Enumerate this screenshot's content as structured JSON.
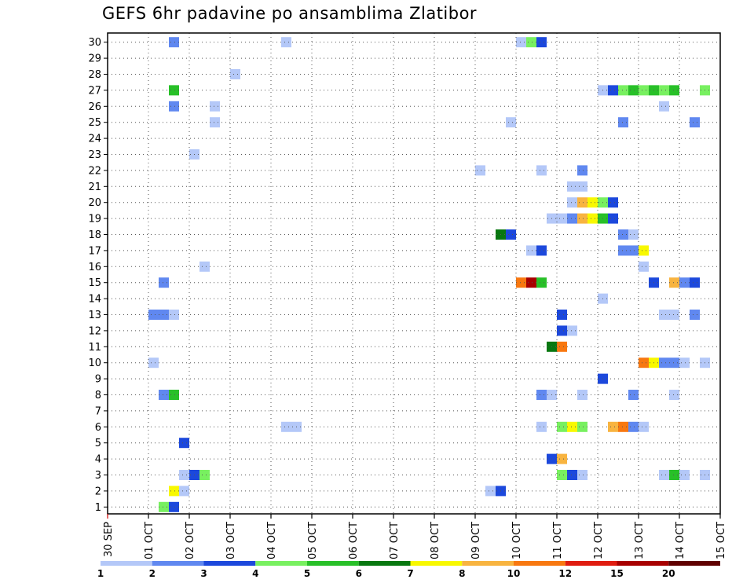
{
  "chart_data": {
    "type": "heatmap",
    "title": "GEFS 6hr padavine po ansamblima Zlatibor",
    "xlabel": "",
    "ylabel": "",
    "x_tick_labels": [
      "30 SEP",
      "01 OCT",
      "02 OCT",
      "03 OCT",
      "04 OCT",
      "05 OCT",
      "06 OCT",
      "07 OCT",
      "08 OCT",
      "09 OCT",
      "10 OCT",
      "11 OCT",
      "12 OCT",
      "13 OCT",
      "14 OCT",
      "15 OCT"
    ],
    "x_range_days": [
      0,
      15
    ],
    "y_tick_labels": [
      "1",
      "2",
      "3",
      "4",
      "5",
      "6",
      "7",
      "8",
      "9",
      "10",
      "11",
      "12",
      "13",
      "14",
      "15",
      "16",
      "17",
      "18",
      "19",
      "20",
      "21",
      "22",
      "23",
      "24",
      "25",
      "26",
      "27",
      "28",
      "29",
      "30"
    ],
    "y_range": [
      0,
      30
    ],
    "grid": true,
    "colorbar": {
      "labels": [
        "1",
        "2",
        "3",
        "4",
        "5",
        "6",
        "7",
        "8",
        "10",
        "12",
        "15",
        "20"
      ],
      "colors": [
        "#b4c8f8",
        "#6088f0",
        "#1c48dc",
        "#78f060",
        "#28c028",
        "#087810",
        "#f8f800",
        "#f8b440",
        "#f87810",
        "#e01c10",
        "#a80000",
        "#600000"
      ]
    },
    "cells": [
      {
        "member": 30,
        "day": 1.5,
        "color": "#6088f0"
      },
      {
        "member": 30,
        "day": 4.25,
        "color": "#b4c8f8"
      },
      {
        "member": 30,
        "day": 10.0,
        "color": "#b4c8f8"
      },
      {
        "member": 30,
        "day": 10.25,
        "color": "#78f060"
      },
      {
        "member": 30,
        "day": 10.5,
        "color": "#1c48dc"
      },
      {
        "member": 28,
        "day": 3.0,
        "color": "#b4c8f8"
      },
      {
        "member": 27,
        "day": 1.5,
        "color": "#28c028"
      },
      {
        "member": 27,
        "day": 12.0,
        "color": "#b4c8f8"
      },
      {
        "member": 27,
        "day": 12.25,
        "color": "#1c48dc"
      },
      {
        "member": 27,
        "day": 12.5,
        "color": "#78f060"
      },
      {
        "member": 27,
        "day": 12.75,
        "color": "#28c028"
      },
      {
        "member": 27,
        "day": 13.0,
        "color": "#78f060"
      },
      {
        "member": 27,
        "day": 13.25,
        "color": "#28c028"
      },
      {
        "member": 27,
        "day": 13.5,
        "color": "#78f060"
      },
      {
        "member": 27,
        "day": 13.75,
        "color": "#28c028"
      },
      {
        "member": 27,
        "day": 14.5,
        "color": "#78f060"
      },
      {
        "member": 26,
        "day": 1.5,
        "color": "#6088f0"
      },
      {
        "member": 26,
        "day": 2.5,
        "color": "#b4c8f8"
      },
      {
        "member": 26,
        "day": 13.5,
        "color": "#b4c8f8"
      },
      {
        "member": 25,
        "day": 2.5,
        "color": "#b4c8f8"
      },
      {
        "member": 25,
        "day": 9.75,
        "color": "#b4c8f8"
      },
      {
        "member": 25,
        "day": 12.5,
        "color": "#6088f0"
      },
      {
        "member": 25,
        "day": 14.25,
        "color": "#6088f0"
      },
      {
        "member": 23,
        "day": 2.0,
        "color": "#b4c8f8"
      },
      {
        "member": 22,
        "day": 9.0,
        "color": "#b4c8f8"
      },
      {
        "member": 22,
        "day": 10.5,
        "color": "#b4c8f8"
      },
      {
        "member": 22,
        "day": 11.5,
        "color": "#6088f0"
      },
      {
        "member": 21,
        "day": 11.25,
        "color": "#b4c8f8"
      },
      {
        "member": 21,
        "day": 11.5,
        "color": "#b4c8f8"
      },
      {
        "member": 20,
        "day": 11.25,
        "color": "#b4c8f8"
      },
      {
        "member": 20,
        "day": 11.5,
        "color": "#f8b440"
      },
      {
        "member": 20,
        "day": 11.75,
        "color": "#f8f800"
      },
      {
        "member": 20,
        "day": 12.0,
        "color": "#78f060"
      },
      {
        "member": 20,
        "day": 12.25,
        "color": "#1c48dc"
      },
      {
        "member": 19,
        "day": 10.75,
        "color": "#b4c8f8"
      },
      {
        "member": 19,
        "day": 11.0,
        "color": "#b4c8f8"
      },
      {
        "member": 19,
        "day": 11.25,
        "color": "#6088f0"
      },
      {
        "member": 19,
        "day": 11.5,
        "color": "#f8b440"
      },
      {
        "member": 19,
        "day": 11.75,
        "color": "#f8f800"
      },
      {
        "member": 19,
        "day": 12.0,
        "color": "#28c028"
      },
      {
        "member": 19,
        "day": 12.25,
        "color": "#1c48dc"
      },
      {
        "member": 18,
        "day": 9.5,
        "color": "#087810"
      },
      {
        "member": 18,
        "day": 9.75,
        "color": "#1c48dc"
      },
      {
        "member": 18,
        "day": 12.5,
        "color": "#6088f0"
      },
      {
        "member": 18,
        "day": 12.75,
        "color": "#b4c8f8"
      },
      {
        "member": 17,
        "day": 10.25,
        "color": "#b4c8f8"
      },
      {
        "member": 17,
        "day": 10.5,
        "color": "#1c48dc"
      },
      {
        "member": 17,
        "day": 12.5,
        "color": "#6088f0"
      },
      {
        "member": 17,
        "day": 12.75,
        "color": "#6088f0"
      },
      {
        "member": 17,
        "day": 13.0,
        "color": "#f8f800"
      },
      {
        "member": 16,
        "day": 2.25,
        "color": "#b4c8f8"
      },
      {
        "member": 16,
        "day": 13.0,
        "color": "#b4c8f8"
      },
      {
        "member": 15,
        "day": 1.25,
        "color": "#6088f0"
      },
      {
        "member": 15,
        "day": 10.0,
        "color": "#f87810"
      },
      {
        "member": 15,
        "day": 10.25,
        "color": "#a80000"
      },
      {
        "member": 15,
        "day": 10.5,
        "color": "#28c028"
      },
      {
        "member": 15,
        "day": 13.25,
        "color": "#1c48dc"
      },
      {
        "member": 15,
        "day": 13.75,
        "color": "#f8b440"
      },
      {
        "member": 15,
        "day": 14.0,
        "color": "#6088f0"
      },
      {
        "member": 15,
        "day": 14.25,
        "color": "#1c48dc"
      },
      {
        "member": 14,
        "day": 12.0,
        "color": "#b4c8f8"
      },
      {
        "member": 13,
        "day": 1.0,
        "color": "#6088f0"
      },
      {
        "member": 13,
        "day": 1.25,
        "color": "#6088f0"
      },
      {
        "member": 13,
        "day": 1.5,
        "color": "#b4c8f8"
      },
      {
        "member": 13,
        "day": 11.0,
        "color": "#1c48dc"
      },
      {
        "member": 13,
        "day": 13.5,
        "color": "#b4c8f8"
      },
      {
        "member": 13,
        "day": 13.75,
        "color": "#b4c8f8"
      },
      {
        "member": 13,
        "day": 14.25,
        "color": "#6088f0"
      },
      {
        "member": 12,
        "day": 11.0,
        "color": "#1c48dc"
      },
      {
        "member": 12,
        "day": 11.25,
        "color": "#b4c8f8"
      },
      {
        "member": 11,
        "day": 10.75,
        "color": "#087810"
      },
      {
        "member": 11,
        "day": 11.0,
        "color": "#f87810"
      },
      {
        "member": 10,
        "day": 1.0,
        "color": "#b4c8f8"
      },
      {
        "member": 10,
        "day": 13.0,
        "color": "#f87810"
      },
      {
        "member": 10,
        "day": 13.25,
        "color": "#f8f800"
      },
      {
        "member": 10,
        "day": 13.5,
        "color": "#6088f0"
      },
      {
        "member": 10,
        "day": 13.75,
        "color": "#6088f0"
      },
      {
        "member": 10,
        "day": 14.0,
        "color": "#b4c8f8"
      },
      {
        "member": 10,
        "day": 14.5,
        "color": "#b4c8f8"
      },
      {
        "member": 9,
        "day": 12.0,
        "color": "#1c48dc"
      },
      {
        "member": 8,
        "day": 1.25,
        "color": "#6088f0"
      },
      {
        "member": 8,
        "day": 1.5,
        "color": "#28c028"
      },
      {
        "member": 8,
        "day": 10.5,
        "color": "#6088f0"
      },
      {
        "member": 8,
        "day": 10.75,
        "color": "#b4c8f8"
      },
      {
        "member": 8,
        "day": 11.5,
        "color": "#b4c8f8"
      },
      {
        "member": 8,
        "day": 12.75,
        "color": "#6088f0"
      },
      {
        "member": 8,
        "day": 13.75,
        "color": "#b4c8f8"
      },
      {
        "member": 6,
        "day": 4.25,
        "color": "#b4c8f8"
      },
      {
        "member": 6,
        "day": 4.5,
        "color": "#b4c8f8"
      },
      {
        "member": 6,
        "day": 10.5,
        "color": "#b4c8f8"
      },
      {
        "member": 6,
        "day": 11.0,
        "color": "#78f060"
      },
      {
        "member": 6,
        "day": 11.25,
        "color": "#f8f800"
      },
      {
        "member": 6,
        "day": 11.5,
        "color": "#78f060"
      },
      {
        "member": 6,
        "day": 12.25,
        "color": "#f8b440"
      },
      {
        "member": 6,
        "day": 12.5,
        "color": "#f87810"
      },
      {
        "member": 6,
        "day": 12.75,
        "color": "#6088f0"
      },
      {
        "member": 6,
        "day": 13.0,
        "color": "#b4c8f8"
      },
      {
        "member": 5,
        "day": 1.75,
        "color": "#1c48dc"
      },
      {
        "member": 4,
        "day": 10.75,
        "color": "#1c48dc"
      },
      {
        "member": 4,
        "day": 11.0,
        "color": "#f8b440"
      },
      {
        "member": 3,
        "day": 1.75,
        "color": "#b4c8f8"
      },
      {
        "member": 3,
        "day": 2.0,
        "color": "#1c48dc"
      },
      {
        "member": 3,
        "day": 2.25,
        "color": "#78f060"
      },
      {
        "member": 3,
        "day": 11.0,
        "color": "#78f060"
      },
      {
        "member": 3,
        "day": 11.25,
        "color": "#1c48dc"
      },
      {
        "member": 3,
        "day": 11.5,
        "color": "#b4c8f8"
      },
      {
        "member": 3,
        "day": 13.5,
        "color": "#b4c8f8"
      },
      {
        "member": 3,
        "day": 13.75,
        "color": "#28c028"
      },
      {
        "member": 3,
        "day": 14.0,
        "color": "#b4c8f8"
      },
      {
        "member": 3,
        "day": 14.5,
        "color": "#b4c8f8"
      },
      {
        "member": 2,
        "day": 1.5,
        "color": "#f8f800"
      },
      {
        "member": 2,
        "day": 1.75,
        "color": "#b4c8f8"
      },
      {
        "member": 2,
        "day": 9.25,
        "color": "#b4c8f8"
      },
      {
        "member": 2,
        "day": 9.5,
        "color": "#1c48dc"
      },
      {
        "member": 1,
        "day": 1.25,
        "color": "#78f060"
      },
      {
        "member": 1,
        "day": 1.5,
        "color": "#1c48dc"
      }
    ]
  }
}
